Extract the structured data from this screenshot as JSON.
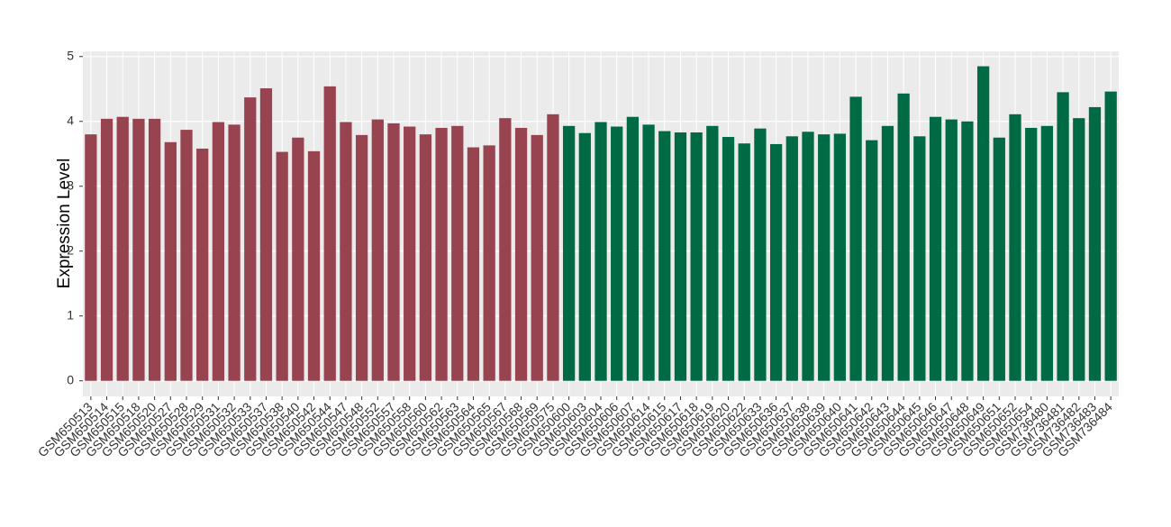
{
  "chart_data": {
    "type": "bar",
    "y_label": "Expression Level",
    "categories": [
      "GSM650513",
      "GSM650514",
      "GSM650515",
      "GSM650518",
      "GSM650520",
      "GSM650527",
      "GSM650528",
      "GSM650529",
      "GSM650531",
      "GSM650532",
      "GSM650533",
      "GSM650537",
      "GSM650538",
      "GSM650540",
      "GSM650542",
      "GSM650544",
      "GSM650547",
      "GSM650548",
      "GSM650552",
      "GSM650557",
      "GSM650558",
      "GSM650560",
      "GSM650562",
      "GSM650563",
      "GSM650564",
      "GSM650565",
      "GSM650567",
      "GSM650568",
      "GSM650569",
      "GSM650575",
      "GSM650600",
      "GSM650603",
      "GSM650604",
      "GSM650606",
      "GSM650607",
      "GSM650614",
      "GSM650615",
      "GSM650617",
      "GSM650618",
      "GSM650619",
      "GSM650620",
      "GSM650622",
      "GSM650633",
      "GSM650636",
      "GSM650637",
      "GSM650638",
      "GSM650639",
      "GSM650640",
      "GSM650641",
      "GSM650642",
      "GSM650643",
      "GSM650644",
      "GSM650645",
      "GSM650646",
      "GSM650647",
      "GSM650648",
      "GSM650649",
      "GSM650651",
      "GSM650652",
      "GSM650654",
      "GSM736480",
      "GSM736481",
      "GSM736482",
      "GSM736483",
      "GSM736484"
    ],
    "series": [
      {
        "color": "#974350",
        "values": [
          3.8,
          4.04,
          4.07,
          4.04,
          4.04,
          3.68,
          3.87,
          3.58,
          3.99,
          3.95,
          4.37,
          4.51,
          3.53,
          3.75,
          3.54,
          4.54,
          3.99,
          3.79,
          4.03,
          3.97,
          3.92,
          3.8,
          3.9,
          3.93,
          3.6,
          3.63,
          4.05,
          3.9,
          3.79,
          4.11,
          null,
          null,
          null,
          null,
          null,
          null,
          null,
          null,
          null,
          null,
          null,
          null,
          null,
          null,
          null,
          null,
          null,
          null,
          null,
          null,
          null,
          null,
          null,
          null,
          null,
          null,
          null,
          null,
          null,
          null,
          null,
          null,
          null,
          null,
          null
        ]
      },
      {
        "color": "#006a44",
        "values": [
          null,
          null,
          null,
          null,
          null,
          null,
          null,
          null,
          null,
          null,
          null,
          null,
          null,
          null,
          null,
          null,
          null,
          null,
          null,
          null,
          null,
          null,
          null,
          null,
          null,
          null,
          null,
          null,
          null,
          null,
          3.93,
          3.82,
          3.99,
          3.92,
          4.07,
          3.95,
          3.85,
          3.83,
          3.83,
          3.93,
          3.76,
          3.66,
          3.89,
          3.65,
          3.77,
          3.84,
          3.8,
          3.81,
          4.38,
          3.71,
          3.93,
          4.43,
          3.77,
          4.07,
          4.03,
          4.0,
          4.85,
          3.75,
          4.11,
          3.9,
          3.93,
          4.45,
          4.05,
          4.22,
          4.46
        ]
      }
    ],
    "ylim": [
      -0.24,
      5.08
    ],
    "yticks": [
      0,
      1,
      2,
      3,
      4,
      5
    ],
    "grid": true
  }
}
